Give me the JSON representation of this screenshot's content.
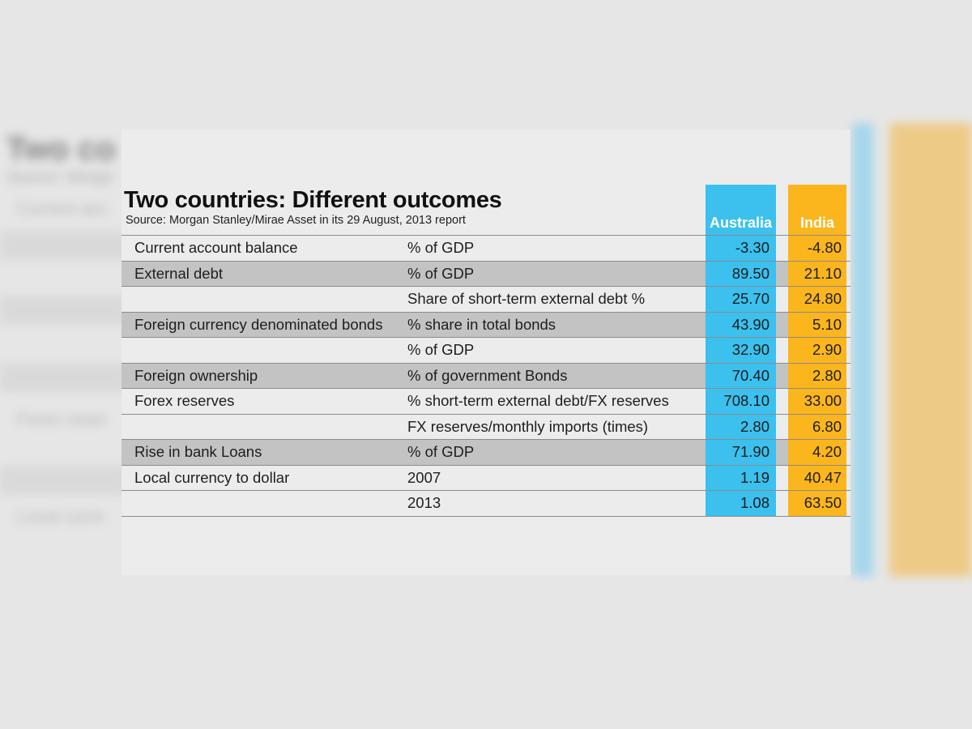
{
  "title": "Two countries: Different outcomes",
  "source": "Source: Morgan Stanley/Mirae Asset in its 29 August, 2013 report",
  "colors": {
    "australia": "#3cc0ee",
    "india": "#fbb51d",
    "shade": "#c3c3c3"
  },
  "chart_data": {
    "type": "table",
    "title": "Two countries: Different outcomes",
    "subtitle": "Source: Morgan Stanley/Mirae Asset in its 29 August, 2013 report",
    "columns": [
      "",
      "",
      "Australia",
      "India"
    ],
    "rows": [
      {
        "indicator": "Current account balance",
        "metric": "% of GDP",
        "australia": "-3.30",
        "india": "-4.80"
      },
      {
        "indicator": "External debt",
        "metric": "% of GDP",
        "australia": "89.50",
        "india": "21.10"
      },
      {
        "indicator": "",
        "metric": "Share of short-term external debt %",
        "australia": "25.70",
        "india": "24.80"
      },
      {
        "indicator": "Foreign currency denominated bonds",
        "metric": "% share in total bonds",
        "australia": "43.90",
        "india": "5.10"
      },
      {
        "indicator": "",
        "metric": "% of GDP",
        "australia": "32.90",
        "india": "2.90"
      },
      {
        "indicator": "Foreign ownership",
        "metric": "% of government Bonds",
        "australia": "70.40",
        "india": "2.80"
      },
      {
        "indicator": "Forex reserves",
        "metric": "% short-term external debt/FX reserves",
        "australia": "708.10",
        "india": "33.00"
      },
      {
        "indicator": "",
        "metric": "FX reserves/monthly imports (times)",
        "australia": "2.80",
        "india": "6.80"
      },
      {
        "indicator": "Rise in bank Loans",
        "metric": "% of GDP",
        "australia": "71.90",
        "india": "4.20"
      },
      {
        "indicator": "Local currency to dollar",
        "metric": "2007",
        "australia": "1.19",
        "india": "40.47"
      },
      {
        "indicator": "",
        "metric": "2013",
        "australia": "1.08",
        "india": "63.50"
      }
    ],
    "shaded_rows": [
      1,
      3,
      5,
      8
    ]
  }
}
